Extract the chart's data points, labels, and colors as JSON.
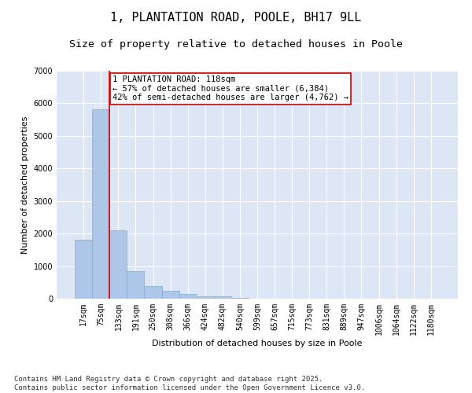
{
  "title_line1": "1, PLANTATION ROAD, POOLE, BH17 9LL",
  "title_line2": "Size of property relative to detached houses in Poole",
  "xlabel": "Distribution of detached houses by size in Poole",
  "ylabel": "Number of detached properties",
  "categories": [
    "17sqm",
    "75sqm",
    "133sqm",
    "191sqm",
    "250sqm",
    "308sqm",
    "366sqm",
    "424sqm",
    "482sqm",
    "540sqm",
    "599sqm",
    "657sqm",
    "715sqm",
    "773sqm",
    "831sqm",
    "889sqm",
    "947sqm",
    "1006sqm",
    "1064sqm",
    "1122sqm",
    "1180sqm"
  ],
  "values": [
    1800,
    5820,
    2090,
    840,
    380,
    230,
    140,
    80,
    80,
    30,
    10,
    5,
    3,
    2,
    1,
    1,
    0,
    0,
    0,
    0,
    0
  ],
  "bar_color": "#aec6e8",
  "bar_edge_color": "#7bafd4",
  "vline_color": "#cc0000",
  "annotation_title": "1 PLANTATION ROAD: 118sqm",
  "annotation_line2": "← 57% of detached houses are smaller (6,384)",
  "annotation_line3": "42% of semi-detached houses are larger (4,762) →",
  "annotation_box_color": "#cc0000",
  "ylim": [
    0,
    7000
  ],
  "yticks": [
    0,
    1000,
    2000,
    3000,
    4000,
    5000,
    6000,
    7000
  ],
  "background_color": "#dce6f5",
  "footer_line1": "Contains HM Land Registry data © Crown copyright and database right 2025.",
  "footer_line2": "Contains public sector information licensed under the Open Government Licence v3.0.",
  "title_fontsize": 11,
  "subtitle_fontsize": 9.5,
  "axis_label_fontsize": 8,
  "tick_fontsize": 7,
  "annotation_fontsize": 7.5,
  "footer_fontsize": 6.5
}
